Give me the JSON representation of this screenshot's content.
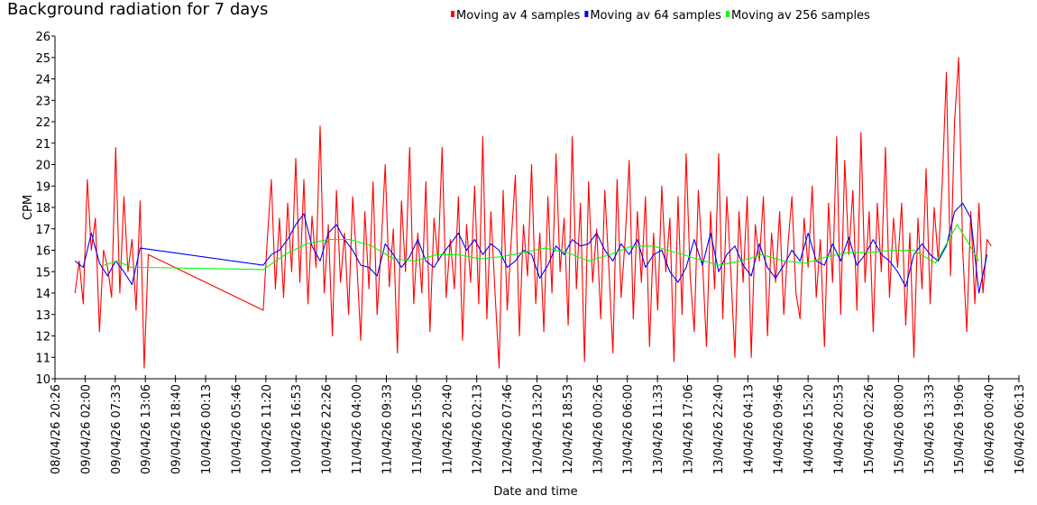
{
  "chart_data": {
    "type": "line",
    "title": "Background radiation for 7 days",
    "xlabel": "Date and time",
    "ylabel": "CPM",
    "ylim": [
      10,
      26
    ],
    "yticks": [
      10,
      11,
      12,
      13,
      14,
      15,
      16,
      17,
      18,
      19,
      20,
      21,
      22,
      23,
      24,
      25,
      26
    ],
    "x_unit": "hours since 08/04/26 20:26",
    "xlim_hours": [
      0,
      177.78
    ],
    "x_tick_step_hours": 5.5556,
    "x_tick_labels": [
      "08/04/26 20:26",
      "09/04/26 02:00",
      "09/04/26 07:33",
      "09/04/26 13:06",
      "09/04/26 18:40",
      "10/04/26 00:13",
      "10/04/26 05:46",
      "10/04/26 11:20",
      "10/04/26 16:53",
      "10/04/26 22:26",
      "11/04/26 04:00",
      "11/04/26 09:33",
      "11/04/26 15:06",
      "11/04/26 20:40",
      "12/04/26 02:13",
      "12/04/26 07:46",
      "12/04/26 13:20",
      "12/04/26 18:53",
      "13/04/26 00:26",
      "13/04/26 06:00",
      "13/04/26 11:33",
      "13/04/26 17:06",
      "13/04/26 22:40",
      "14/04/26 04:13",
      "14/04/26 09:46",
      "14/04/26 15:20",
      "14/04/26 20:53",
      "15/04/26 02:26",
      "15/04/26 08:00",
      "15/04/26 13:33",
      "15/04/26 19:06",
      "16/04/26 00:40",
      "16/04/26 06:13"
    ],
    "legend_position": "top",
    "series": [
      {
        "name": "Moving av 4 samples",
        "color": "#ff0000",
        "segments": [
          {
            "start_h": 3.7,
            "step_h": 0.75,
            "values": [
              14,
              15.5,
              13.5,
              19.3,
              16,
              17.5,
              12.2,
              16,
              15.2,
              13.8,
              20.8,
              14,
              18.5,
              15,
              16.5,
              13.2,
              18.3,
              10.5,
              15.8
            ]
          },
          {
            "start_h": 38.4,
            "step_h": 0.75,
            "values": [
              13.2,
              16.5,
              19.3,
              14.2,
              17.5,
              13.8,
              18.2,
              15.0,
              20.3,
              14.5,
              19.3,
              13.5,
              17.6,
              15.2,
              21.8,
              14.0,
              17.2,
              12.0,
              18.8,
              14.5,
              16.8,
              13.0,
              18.5,
              15.5,
              11.8,
              17.8,
              14.2,
              19.2,
              13.0,
              16.2,
              20.0,
              14.3,
              17.0,
              11.2,
              18.3,
              15.0,
              20.8,
              13.5,
              16.8,
              14.0,
              19.2,
              12.2,
              17.5,
              15.5,
              20.8,
              13.8,
              16.5,
              14.2,
              18.5,
              11.8,
              17.2,
              14.5,
              19.0,
              13.5,
              21.3,
              12.8,
              17.8,
              14.0,
              10.5,
              18.8,
              13.2,
              16.5,
              19.5,
              12.0,
              17.2,
              14.8,
              20.0,
              13.5,
              16.8,
              12.2,
              18.5,
              14.0,
              20.5,
              15.0,
              17.5,
              12.5,
              21.3,
              14.2,
              18.2,
              10.8,
              19.2,
              14.5,
              17.0,
              12.8,
              18.8,
              15.2,
              11.2,
              19.3,
              13.8,
              16.5,
              20.2,
              12.8,
              17.8,
              14.5,
              18.5,
              11.5,
              16.8,
              13.2,
              19.0,
              15.0,
              17.5,
              10.8,
              18.5,
              13.0,
              20.5,
              14.8,
              12.2,
              18.8,
              15.5,
              11.5,
              17.8,
              14.2,
              20.5,
              12.8,
              18.5,
              15.0,
              11.0,
              17.8,
              14.5,
              18.5,
              11.0,
              17.2,
              15.5,
              18.5,
              12.0,
              16.8,
              14.5,
              17.8,
              13.0,
              16.2,
              18.5,
              14.0,
              12.8,
              17.5,
              15.2,
              19.0,
              13.8,
              16.5,
              11.5,
              18.2,
              14.5,
              21.3,
              13.0,
              20.2,
              15.8,
              18.8,
              13.2,
              21.5,
              14.5,
              17.8,
              12.2,
              18.2,
              15.0,
              20.8,
              13.8,
              17.5,
              15.2,
              18.2,
              12.5,
              16.8,
              11.0,
              17.5,
              14.2,
              19.8,
              13.5,
              18.0,
              15.5,
              19.2,
              24.3,
              14.8,
              22.0,
              25.0,
              16.0,
              12.2,
              17.8,
              13.5,
              18.2,
              14.0,
              16.5,
              16.2
            ]
          }
        ]
      },
      {
        "name": "Moving av 64 samples",
        "color": "#0000ff",
        "segments": [
          {
            "start_h": 3.7,
            "step_h": 1.5,
            "values": [
              15.5,
              15.2,
              16.8,
              15.4,
              14.8,
              15.5,
              15.0,
              14.4,
              16.1
            ]
          },
          {
            "start_h": 38.4,
            "step_h": 1.5,
            "values": [
              15.3,
              15.8,
              16.0,
              16.5,
              17.2,
              17.7,
              16.2,
              15.5,
              16.8,
              17.2,
              16.5,
              16.0,
              15.3,
              15.2,
              14.8,
              16.3,
              15.8,
              15.2,
              15.7,
              16.5,
              15.5,
              15.2,
              15.8,
              16.3,
              16.8,
              16.0,
              16.5,
              15.8,
              16.3,
              16.0,
              15.2,
              15.5,
              16.0,
              15.8,
              14.7,
              15.3,
              16.2,
              15.8,
              16.5,
              16.2,
              16.3,
              16.8,
              16.0,
              15.5,
              16.3,
              15.8,
              16.5,
              15.2,
              15.8,
              16.0,
              15.0,
              14.5,
              15.2,
              16.5,
              15.3,
              16.8,
              15.0,
              15.8,
              16.2,
              15.3,
              14.8,
              16.3,
              15.2,
              14.7,
              15.3,
              16.0,
              15.5,
              16.8,
              15.5,
              15.3,
              16.3,
              15.5,
              16.6,
              15.3,
              15.8,
              16.5,
              15.8,
              15.5,
              15.0,
              14.3,
              15.8,
              16.3,
              15.8,
              15.5,
              16.2,
              17.8,
              18.2,
              17.5,
              14.0,
              15.8
            ]
          }
        ]
      },
      {
        "name": "Moving av 256 samples",
        "color": "#00ff00",
        "segments": [
          {
            "start_h": 9.0,
            "step_h": 2.5,
            "values": [
              15.3,
              15.5,
              15.2,
              15.2
            ]
          },
          {
            "start_h": 38.4,
            "step_h": 4,
            "values": [
              15.1,
              15.8,
              16.3,
              16.5,
              16.5,
              16.2,
              15.6,
              15.5,
              15.8,
              15.8,
              15.6,
              15.7,
              15.9,
              16.1,
              15.9,
              15.5,
              15.8,
              16.2,
              16.2,
              15.9,
              15.6,
              15.3,
              15.5,
              15.8,
              15.5,
              15.4,
              15.7,
              15.9,
              15.9,
              16.0,
              16.0,
              15.4,
              17.2,
              15.5
            ]
          }
        ]
      }
    ]
  }
}
